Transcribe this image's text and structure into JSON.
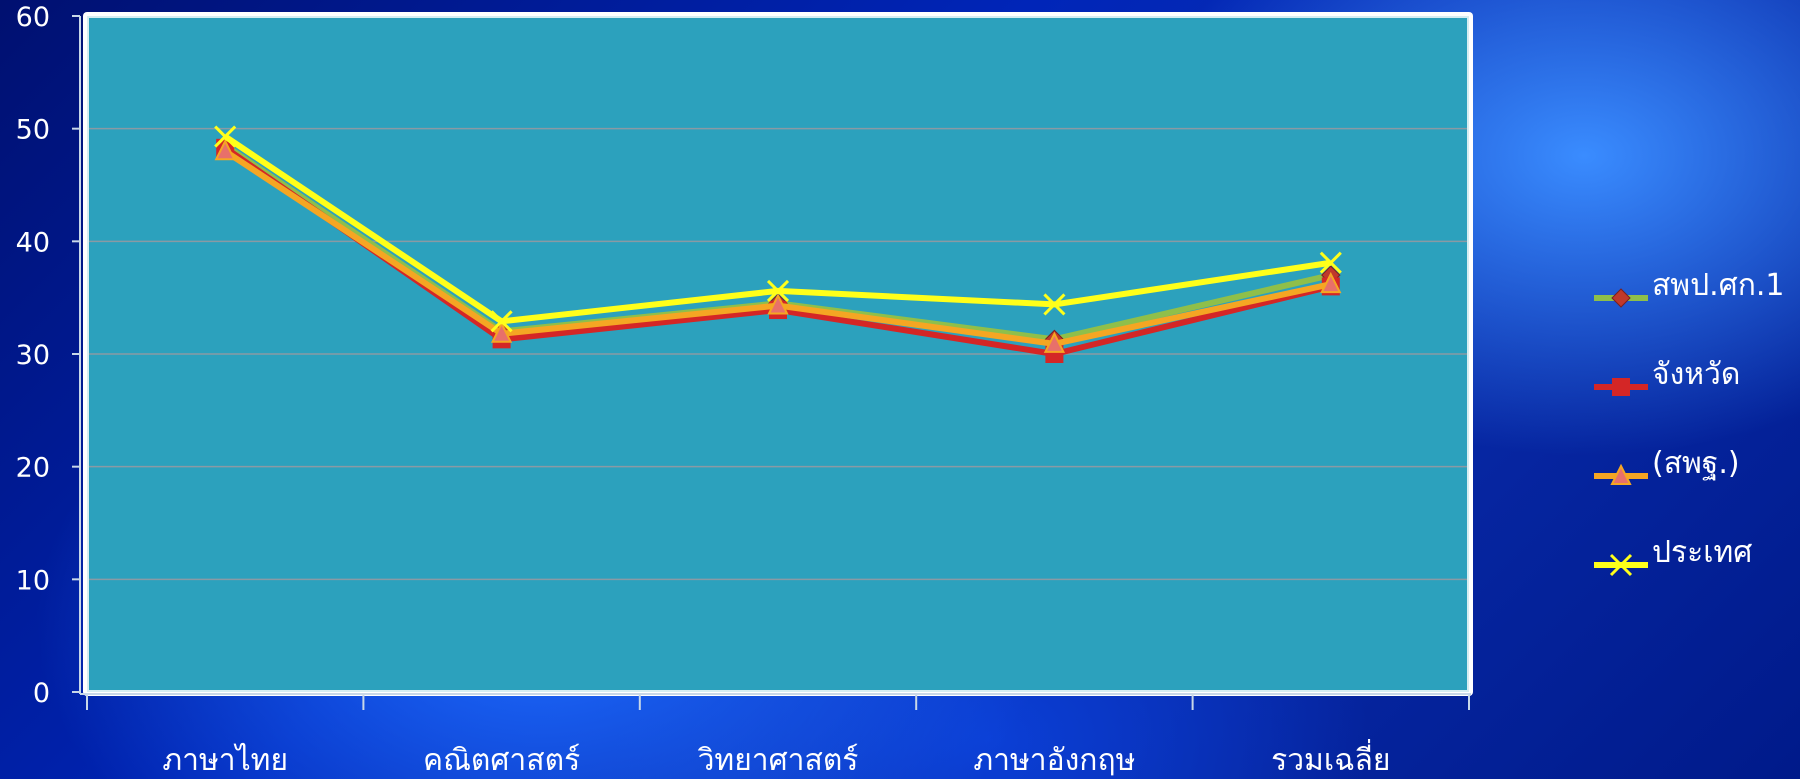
{
  "chart_data": {
    "type": "line",
    "title": "",
    "xlabel": "",
    "ylabel": "",
    "ylim": [
      0,
      60
    ],
    "yticks": [
      0,
      10,
      20,
      30,
      40,
      50,
      60
    ],
    "grid": true,
    "legend_position": "right",
    "categories": [
      "ภาษาไทย",
      "คณิตศาสตร์",
      "วิทยาศาสตร์",
      "ภาษาอังกฤษ",
      "รวมเฉลี่ย"
    ],
    "series": [
      {
        "name": "สพป.ศก.1",
        "values": [
          48.5,
          32.0,
          34.5,
          31.3,
          37.0
        ],
        "color": "#8fbf4a",
        "marker": "diamond",
        "marker_color": "#c0392b"
      },
      {
        "name": "จังหวัด",
        "values": [
          48.3,
          31.3,
          33.9,
          30.0,
          36.0
        ],
        "color": "#d42626",
        "marker": "square",
        "marker_color": "#d42626"
      },
      {
        "name": "(สพฐ.)",
        "values": [
          48.0,
          31.8,
          34.3,
          30.9,
          36.2
        ],
        "color": "#f5a623",
        "marker": "triangle",
        "marker_color": "#e8706a"
      },
      {
        "name": "ประเทศ",
        "values": [
          49.3,
          32.9,
          35.6,
          34.4,
          38.1
        ],
        "color": "#ffff1a",
        "marker": "x",
        "marker_color": "#ffff1a"
      }
    ],
    "plot_background": "#2ca1bd",
    "grid_color": "#8a9aa4"
  }
}
